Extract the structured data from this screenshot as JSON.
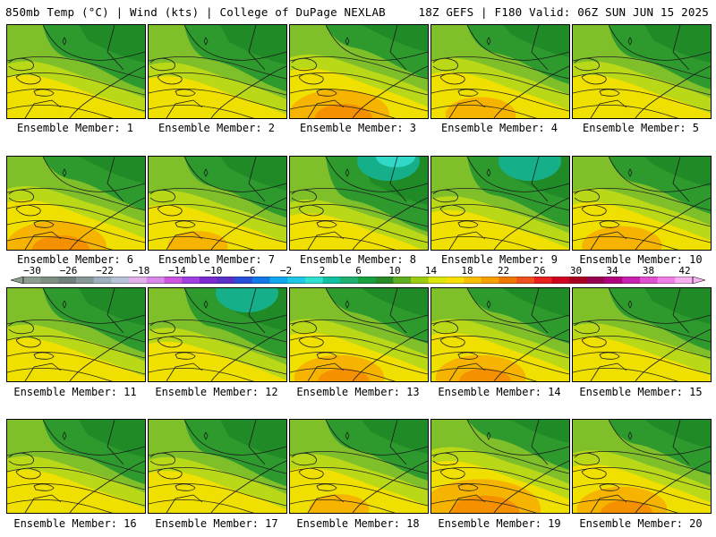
{
  "header": {
    "left": "850mb Temp (°C) | Wind (kts) | College of DuPage NEXLAB",
    "right": "18Z GEFS | F180 Valid: 06Z SUN JUN 15 2025"
  },
  "members": [
    {
      "caption": "Ensemble Member: 1",
      "warmth": 0.45
    },
    {
      "caption": "Ensemble Member: 2",
      "warmth": 0.4
    },
    {
      "caption": "Ensemble Member: 3",
      "warmth": 0.75
    },
    {
      "caption": "Ensemble Member: 4",
      "warmth": 0.6
    },
    {
      "caption": "Ensemble Member: 5",
      "warmth": 0.45
    },
    {
      "caption": "Ensemble Member: 6",
      "warmth": 0.75
    },
    {
      "caption": "Ensemble Member: 7",
      "warmth": 0.55
    },
    {
      "caption": "Ensemble Member: 8",
      "warmth": 0.15
    },
    {
      "caption": "Ensemble Member: 9",
      "warmth": 0.3
    },
    {
      "caption": "Ensemble Member: 10",
      "warmth": 0.65
    },
    {
      "caption": "Ensemble Member: 11",
      "warmth": 0.45
    },
    {
      "caption": "Ensemble Member: 12",
      "warmth": 0.3
    },
    {
      "caption": "Ensemble Member: 13",
      "warmth": 0.7
    },
    {
      "caption": "Ensemble Member: 14",
      "warmth": 0.7
    },
    {
      "caption": "Ensemble Member: 15",
      "warmth": 0.5
    },
    {
      "caption": "Ensemble Member: 16",
      "warmth": 0.45
    },
    {
      "caption": "Ensemble Member: 17",
      "warmth": 0.4
    },
    {
      "caption": "Ensemble Member: 18",
      "warmth": 0.55
    },
    {
      "caption": "Ensemble Member: 19",
      "warmth": 0.85
    },
    {
      "caption": "Ensemble Member: 20",
      "warmth": 0.7
    }
  ],
  "colorbar": {
    "labels": [
      "−30",
      "−26",
      "−22",
      "−18",
      "−14",
      "−10",
      "−6",
      "−2",
      "2",
      "6",
      "10",
      "14",
      "18",
      "22",
      "26",
      "30",
      "34",
      "38",
      "42"
    ],
    "colors": [
      "#8e9e8e",
      "#7e8e80",
      "#70807a",
      "#889899",
      "#9fb0bd",
      "#b9c2d8",
      "#e3b0ea",
      "#d98ae8",
      "#cc55dd",
      "#a040e0",
      "#7a2ad0",
      "#5a30c8",
      "#2850d8",
      "#1478e8",
      "#10a8f0",
      "#20c8e8",
      "#30e0d0",
      "#10c0a0",
      "#20b070",
      "#18a040",
      "#2a8a28",
      "#5fae20",
      "#9ccc10",
      "#dde60a",
      "#f8e000",
      "#f8c000",
      "#f8a000",
      "#f07800",
      "#f05020",
      "#e82020",
      "#d00020",
      "#a80020",
      "#980050",
      "#b00080",
      "#c820b0",
      "#e050d0",
      "#f080e8",
      "#f8b0f0"
    ]
  }
}
